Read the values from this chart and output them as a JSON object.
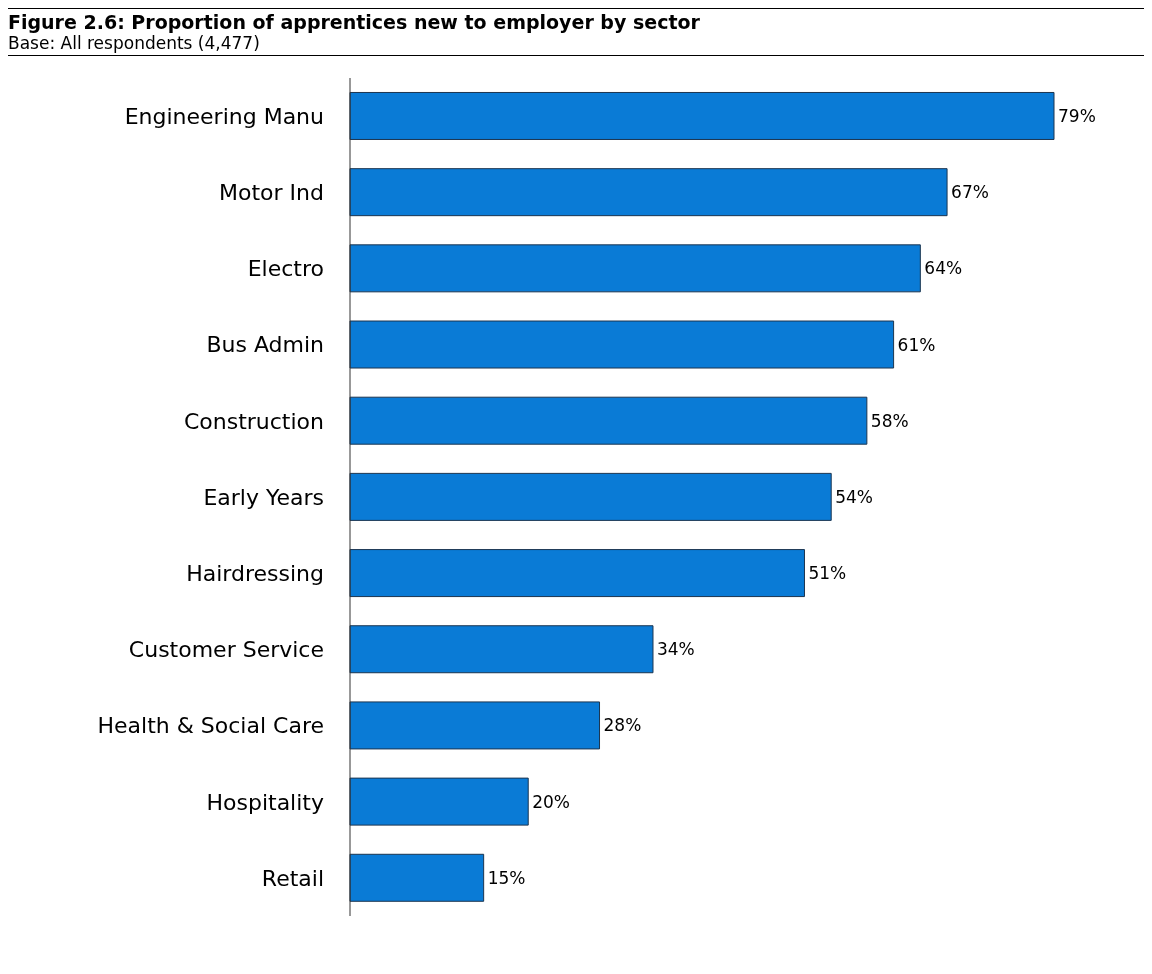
{
  "chart_data": {
    "type": "bar",
    "orientation": "horizontal",
    "title": "Figure 2.6: Proportion of apprentices new to employer by sector",
    "subtitle": "Base: All respondents (4,477)",
    "categories": [
      "Engineering Manu",
      "Motor Ind",
      "Electro",
      "Bus Admin",
      "Construction",
      "Early Years",
      "Hairdressing",
      "Customer Service",
      "Health & Social Care",
      "Hospitality",
      "Retail"
    ],
    "values": [
      79,
      67,
      64,
      61,
      58,
      54,
      51,
      34,
      28,
      20,
      15
    ],
    "value_labels": [
      "79%",
      "67%",
      "64%",
      "61%",
      "58%",
      "54%",
      "51%",
      "34%",
      "28%",
      "20%",
      "15%"
    ],
    "color": "#0a7bd6",
    "grid": false,
    "legend": false
  }
}
